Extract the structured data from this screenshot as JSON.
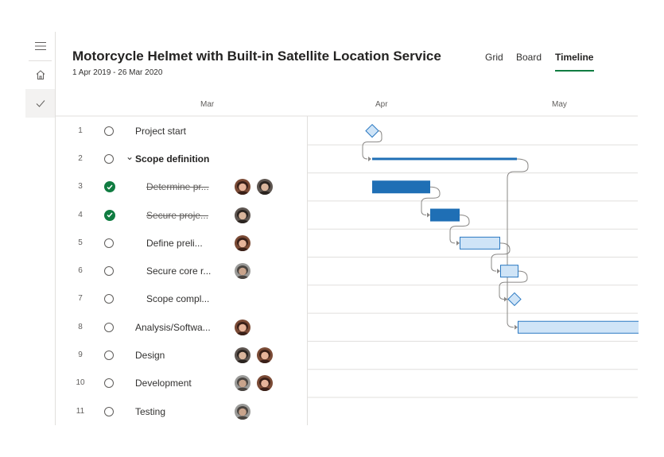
{
  "rail": {
    "items": [
      {
        "icon": "hamburger-menu-icon",
        "active": false
      },
      {
        "icon": "home-icon",
        "active": false
      },
      {
        "icon": "checkmark-icon",
        "active": true
      }
    ]
  },
  "header": {
    "title": "Motorcycle Helmet with Built-in Satellite Location Service",
    "dates": "1 Apr 2019 - 26 Mar 2020"
  },
  "tabs": [
    {
      "label": "Grid",
      "active": false
    },
    {
      "label": "Board",
      "active": false
    },
    {
      "label": "Timeline",
      "active": true
    }
  ],
  "timeline_header": {
    "months": [
      "Mar",
      "Apr",
      "May"
    ]
  },
  "tasks": [
    {
      "num": "1",
      "name": "Project start",
      "done": false,
      "summary": false,
      "avatars": []
    },
    {
      "num": "2",
      "name": "Scope definition",
      "done": false,
      "summary": true,
      "avatars": []
    },
    {
      "num": "3",
      "name": "Determine pr...",
      "done": true,
      "summary": false,
      "avatars": [
        "woman",
        "man"
      ]
    },
    {
      "num": "4",
      "name": "Secure proje...",
      "done": true,
      "summary": false,
      "avatars": [
        "man"
      ]
    },
    {
      "num": "5",
      "name": "Define preli...",
      "done": false,
      "summary": false,
      "avatars": [
        "woman"
      ]
    },
    {
      "num": "6",
      "name": "Secure core r...",
      "done": false,
      "summary": false,
      "avatars": [
        "man-gray"
      ]
    },
    {
      "num": "7",
      "name": "Scope compl...",
      "done": false,
      "summary": false,
      "avatars": []
    },
    {
      "num": "8",
      "name": "Analysis/Softwa...",
      "done": false,
      "summary": false,
      "avatars": [
        "woman"
      ]
    },
    {
      "num": "9",
      "name": "Design",
      "done": false,
      "summary": false,
      "avatars": [
        "man",
        "woman"
      ]
    },
    {
      "num": "10",
      "name": "Development",
      "done": false,
      "summary": false,
      "avatars": [
        "man-gray",
        "woman"
      ]
    },
    {
      "num": "11",
      "name": "Testing",
      "done": false,
      "summary": false,
      "avatars": [
        "man-gray"
      ]
    }
  ],
  "colors": {
    "accent": "#107c41",
    "bar_done": "#1f6fb5",
    "bar_todo": "#cfe4f7",
    "bar_todo_border": "#2b79c2",
    "milestone_fill": "#cfe4f7"
  }
}
